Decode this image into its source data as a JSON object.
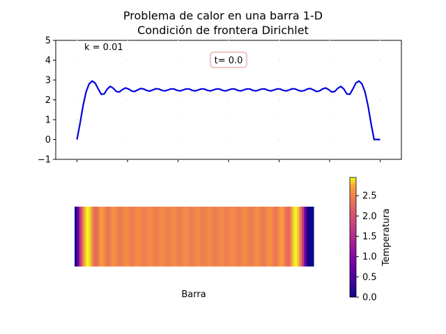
{
  "figure": {
    "title_line1": "Problema de calor en una barra 1-D",
    "title_line2": "Condición de frontera Dirichlet"
  },
  "chart_data": [
    {
      "type": "line",
      "title": "",
      "xlabel": "",
      "ylabel": "",
      "ylim": [
        -1,
        5
      ],
      "yticks": [
        -1,
        0,
        1,
        2,
        3,
        4,
        5
      ],
      "xlim": [
        -0.07,
        1.07
      ],
      "grid": "dotted",
      "annotations": {
        "k": "k = 0.01",
        "t": "t= 0.0"
      },
      "color": "#0000dd",
      "series": [
        {
          "x": [
            0.0,
            0.01,
            0.02,
            0.03,
            0.04,
            0.05,
            0.06,
            0.07,
            0.08,
            0.09,
            0.1,
            0.11,
            0.12,
            0.13,
            0.14,
            0.15,
            0.16,
            0.17,
            0.18,
            0.19,
            0.2,
            0.21,
            0.22,
            0.23,
            0.24,
            0.25,
            0.26,
            0.27,
            0.28,
            0.29,
            0.3,
            0.31,
            0.32,
            0.33,
            0.34,
            0.35,
            0.36,
            0.37,
            0.38,
            0.39,
            0.4,
            0.41,
            0.42,
            0.43,
            0.44,
            0.45,
            0.46,
            0.47,
            0.48,
            0.49,
            0.5,
            0.51,
            0.52,
            0.53,
            0.54,
            0.55,
            0.56,
            0.57,
            0.58,
            0.59,
            0.6,
            0.61,
            0.62,
            0.63,
            0.64,
            0.65,
            0.66,
            0.67,
            0.68,
            0.69,
            0.7,
            0.71,
            0.72,
            0.73,
            0.74,
            0.75,
            0.76,
            0.77,
            0.78,
            0.79,
            0.8,
            0.81,
            0.82,
            0.83,
            0.84,
            0.85,
            0.86,
            0.87,
            0.88,
            0.89,
            0.9,
            0.91,
            0.92,
            0.93,
            0.94,
            0.95,
            0.96,
            0.97,
            0.98,
            0.99,
            1.0
          ],
          "y": [
            0.0,
            0.8,
            1.7,
            2.4,
            2.8,
            2.95,
            2.85,
            2.55,
            2.28,
            2.3,
            2.55,
            2.68,
            2.58,
            2.42,
            2.4,
            2.52,
            2.6,
            2.55,
            2.45,
            2.42,
            2.5,
            2.57,
            2.55,
            2.47,
            2.44,
            2.5,
            2.56,
            2.55,
            2.48,
            2.45,
            2.5,
            2.55,
            2.55,
            2.48,
            2.45,
            2.5,
            2.55,
            2.55,
            2.48,
            2.45,
            2.5,
            2.55,
            2.55,
            2.48,
            2.45,
            2.5,
            2.55,
            2.55,
            2.48,
            2.45,
            2.5,
            2.55,
            2.55,
            2.48,
            2.45,
            2.5,
            2.55,
            2.55,
            2.48,
            2.45,
            2.5,
            2.55,
            2.55,
            2.48,
            2.45,
            2.5,
            2.55,
            2.55,
            2.48,
            2.45,
            2.5,
            2.56,
            2.55,
            2.48,
            2.44,
            2.47,
            2.55,
            2.57,
            2.5,
            2.42,
            2.45,
            2.55,
            2.6,
            2.52,
            2.4,
            2.42,
            2.58,
            2.68,
            2.55,
            2.3,
            2.28,
            2.55,
            2.85,
            2.95,
            2.8,
            2.4,
            1.7,
            0.8,
            0.0,
            0.0,
            0.0
          ]
        }
      ]
    },
    {
      "type": "heatmap",
      "title": "",
      "xlabel": "Barra",
      "colormap": "plasma",
      "colorbar_label": "Temperatura",
      "colorbar_ticks": [
        0.0,
        0.5,
        1.0,
        1.5,
        2.0,
        2.5
      ],
      "vmin": 0.0,
      "vmax": 2.95
    }
  ]
}
